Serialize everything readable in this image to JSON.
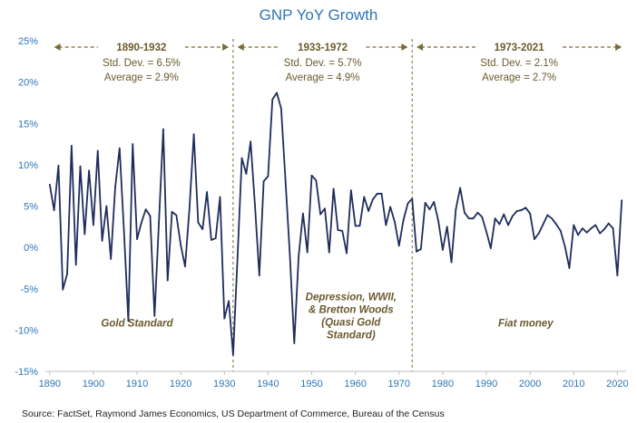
{
  "chart_data": {
    "type": "line",
    "title": "GNP YoY Growth",
    "source": "Source: FactSet, Raymond James Economics, US Department of Commerce, Bureau of the Census",
    "xlim": [
      1889,
      2022
    ],
    "ylim": [
      -15,
      25
    ],
    "x_ticks": [
      1890,
      1900,
      1910,
      1920,
      1930,
      1940,
      1950,
      1960,
      1970,
      1980,
      1990,
      2000,
      2010,
      2020
    ],
    "x_tick_labels": [
      "1890",
      "1900",
      "1910",
      "1920",
      "1930",
      "1940",
      "1950",
      "1960",
      "1970",
      "1980",
      "1990",
      "2000",
      "2010",
      "2020"
    ],
    "y_ticks": [
      -15,
      -10,
      -5,
      0,
      5,
      10,
      15,
      20,
      25
    ],
    "y_tick_labels": [
      "-15%",
      "-10%",
      "-5%",
      "0%",
      "5%",
      "10%",
      "15%",
      "20%",
      "25%"
    ],
    "grid": false,
    "line_color": "#1f2d5c",
    "accent_color": "#7a6a35",
    "era_dividers": [
      1932,
      1973
    ],
    "eras": [
      {
        "range_label": "1890-1932",
        "std_dev": "Std. Dev. = 6.5%",
        "average": "Average = 2.9%",
        "from": 1891,
        "to": 1931
      },
      {
        "range_label": "1933-1972",
        "std_dev": "Std. Dev. = 5.7%",
        "average": "Average = 4.9%",
        "from": 1933,
        "to": 1972
      },
      {
        "range_label": "1973-2021",
        "std_dev": "Std. Dev. = 2.1%",
        "average": "Average = 2.7%",
        "from": 1974,
        "to": 2021
      }
    ],
    "regimes": [
      {
        "lines": [
          "Gold Standard"
        ],
        "x": 1910,
        "y": -9.6
      },
      {
        "lines": [
          "Depression, WWII,",
          "& Bretton Woods",
          "(Quasi Gold",
          "Standard)"
        ],
        "x": 1959,
        "y": -6.4
      },
      {
        "lines": [
          "Fiat money"
        ],
        "x": 1999,
        "y": -9.6
      }
    ],
    "series": [
      {
        "x": [
          1890,
          1891,
          1892,
          1893,
          1894,
          1895,
          1896,
          1897,
          1898,
          1899,
          1900,
          1901,
          1902,
          1903,
          1904,
          1905,
          1906,
          1907,
          1908,
          1909,
          1910,
          1911,
          1912,
          1913,
          1914,
          1915,
          1916,
          1917,
          1918,
          1919,
          1920,
          1921,
          1922,
          1923,
          1924,
          1925,
          1926,
          1927,
          1928,
          1929,
          1930,
          1931,
          1932,
          1933,
          1934,
          1935,
          1936,
          1937,
          1938,
          1939,
          1940,
          1941,
          1942,
          1943,
          1944,
          1945,
          1946,
          1947,
          1948,
          1949,
          1950,
          1951,
          1952,
          1953,
          1954,
          1955,
          1956,
          1957,
          1958,
          1959,
          1960,
          1961,
          1962,
          1963,
          1964,
          1965,
          1966,
          1967,
          1968,
          1969,
          1970,
          1971,
          1972,
          1973,
          1974,
          1975,
          1976,
          1977,
          1978,
          1979,
          1980,
          1981,
          1982,
          1983,
          1984,
          1985,
          1986,
          1987,
          1988,
          1989,
          1990,
          1991,
          1992,
          1993,
          1994,
          1995,
          1996,
          1997,
          1998,
          1999,
          2000,
          2001,
          2002,
          2003,
          2004,
          2005,
          2006,
          2007,
          2008,
          2009,
          2010,
          2011,
          2012,
          2013,
          2014,
          2015,
          2016,
          2017,
          2018,
          2019,
          2020,
          2021
        ],
        "values": [
          7.6,
          4.5,
          9.9,
          -5.1,
          -3.2,
          12.3,
          -2.1,
          9.8,
          1.6,
          9.3,
          2.7,
          11.7,
          0.8,
          5.0,
          -1.4,
          7.3,
          12.0,
          2.0,
          -8.9,
          12.5,
          1.0,
          3.0,
          4.6,
          3.8,
          -8.3,
          3.0,
          14.3,
          -4.0,
          4.3,
          3.9,
          0.3,
          -2.3,
          4.7,
          13.7,
          3.0,
          2.2,
          6.7,
          0.9,
          1.1,
          6.1,
          -8.6,
          -6.5,
          -13.0,
          -1.3,
          10.8,
          8.9,
          12.8,
          5.1,
          -3.4,
          8.0,
          8.6,
          17.9,
          18.7,
          16.8,
          8.0,
          -1.0,
          -11.6,
          -1.1,
          4.1,
          -0.6,
          8.7,
          8.1,
          4.0,
          4.7,
          -0.6,
          7.1,
          2.1,
          2.0,
          -0.7,
          6.9,
          2.6,
          2.6,
          6.1,
          4.4,
          5.8,
          6.5,
          6.5,
          2.7,
          4.9,
          3.1,
          0.2,
          3.3,
          5.3,
          5.9,
          -0.5,
          -0.2,
          5.4,
          4.6,
          5.5,
          3.2,
          -0.3,
          2.5,
          -1.8,
          4.6,
          7.2,
          4.2,
          3.5,
          3.5,
          4.2,
          3.7,
          1.9,
          -0.1,
          3.5,
          2.8,
          4.0,
          2.7,
          3.8,
          4.4,
          4.5,
          4.8,
          4.1,
          1.0,
          1.7,
          2.8,
          3.9,
          3.5,
          2.8,
          2.0,
          0.1,
          -2.5,
          2.7,
          1.5,
          2.3,
          1.8,
          2.3,
          2.7,
          1.7,
          2.2,
          2.9,
          2.3,
          -3.4,
          5.7
        ]
      }
    ]
  }
}
